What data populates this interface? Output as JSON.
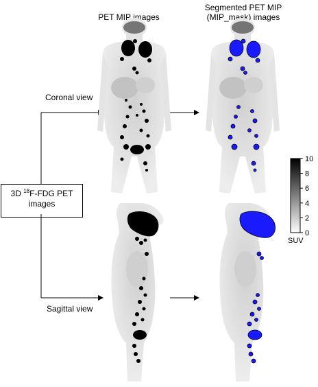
{
  "headers": {
    "mip": "PET MIP images",
    "seg_line1": "Segmented PET MIP",
    "seg_line2": "(MIP_mask) images"
  },
  "views": {
    "coronal": "Coronal view",
    "sagittal": "Sagittal view"
  },
  "input_box": {
    "prefix": "3D ",
    "superscript": "18",
    "suffix": "F-FDG PET",
    "line2": "images"
  },
  "colorbar": {
    "unit": "SUV",
    "ticks": [
      "10",
      "8",
      "6",
      "4",
      "2",
      "0"
    ],
    "range": [
      0,
      10
    ]
  },
  "colors": {
    "segmentation": "#1a1aff",
    "uptake": "#000000",
    "body": "#d9d9d9"
  }
}
